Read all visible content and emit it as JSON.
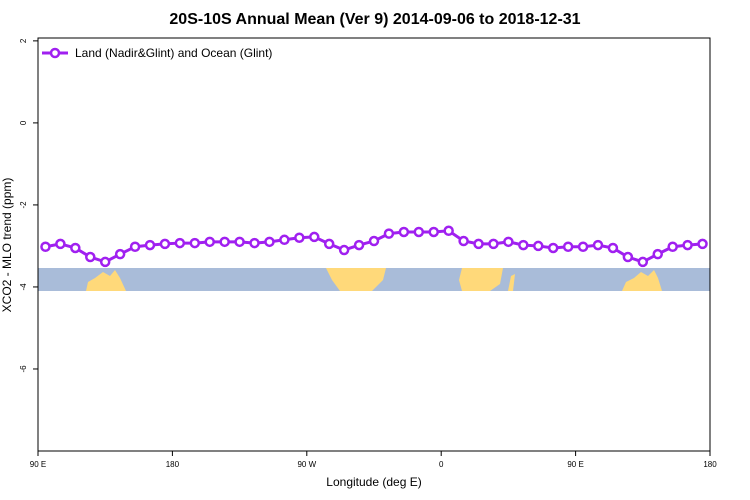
{
  "chart_data": {
    "type": "line",
    "title": "20S-10S Annual Mean (Ver 9)   2014-09-06 to 2018-12-31",
    "x_label": "Longitude (deg E)",
    "y_label": "XCO2 - MLO trend (ppm)",
    "xlim": [
      90,
      540
    ],
    "ylim": [
      -8,
      2.07
    ],
    "xticks": [
      {
        "value": 90,
        "label": "90 E"
      },
      180,
      {
        "value": 270,
        "label": "90 W"
      },
      {
        "value": 360,
        "label": "0"
      },
      {
        "value": 450,
        "label": "90 E"
      },
      {
        "value": 540,
        "label": "180"
      }
    ],
    "yticks": [
      2,
      0,
      -2,
      -4,
      -6
    ],
    "legend_position": "upper-left",
    "x": [
      95,
      105,
      115,
      125,
      135,
      145,
      155,
      165,
      175,
      185,
      195,
      205,
      215,
      225,
      235,
      245,
      255,
      265,
      275,
      285,
      295,
      305,
      315,
      325,
      335,
      345,
      355,
      365,
      375,
      385,
      395,
      405,
      415,
      425,
      435,
      445,
      455,
      465,
      475,
      485,
      495,
      505,
      515,
      525,
      535
    ],
    "series": [
      {
        "name": "Land (Nadir&Glint) and Ocean (Glint)",
        "color": "#a020f0",
        "values": [
          -3.02,
          -2.95,
          -3.05,
          -3.27,
          -3.39,
          -3.2,
          -3.02,
          -2.98,
          -2.95,
          -2.93,
          -2.93,
          -2.9,
          -2.9,
          -2.9,
          -2.93,
          -2.9,
          -2.85,
          -2.8,
          -2.78,
          -2.95,
          -3.1,
          -2.98,
          -2.88,
          -2.7,
          -2.66,
          -2.66,
          -2.66,
          -2.63,
          -2.88,
          -2.95,
          -2.95,
          -2.9,
          -2.98,
          -3.0,
          -3.05,
          -3.02,
          -3.02,
          -2.98,
          -3.05,
          -3.27,
          -3.39,
          -3.2,
          -3.02,
          -2.98,
          -2.95
        ]
      }
    ]
  }
}
